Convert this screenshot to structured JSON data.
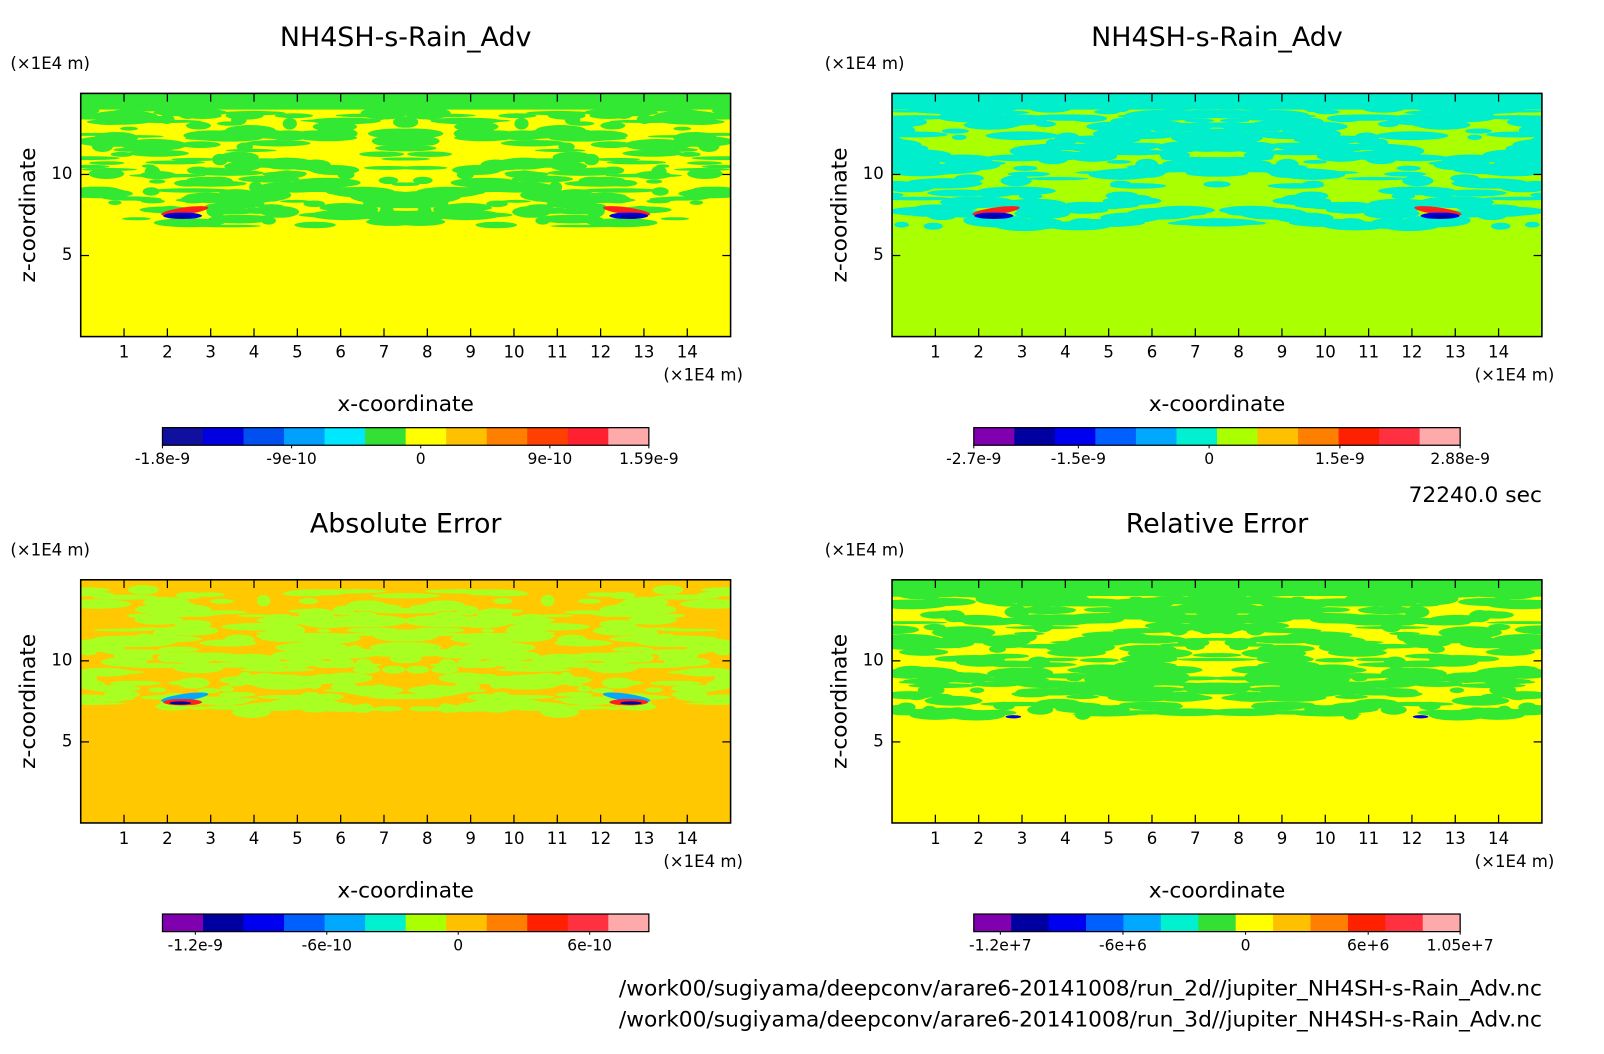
{
  "chart_data": [
    {
      "type": "contour",
      "title": "NH4SH-s-Rain_Adv",
      "xlabel": "x-coordinate",
      "ylabel": "z-coordinate",
      "xunit": "(×1E4 m)",
      "yunit": "(×1E4 m)",
      "xlim": [
        0,
        15
      ],
      "ylim": [
        0,
        15
      ],
      "xticks": [
        1,
        2,
        3,
        4,
        5,
        6,
        7,
        8,
        9,
        10,
        11,
        12,
        13,
        14
      ],
      "yticks": [
        5,
        10
      ],
      "field_colors": [
        "#ffff00",
        "#33e833"
      ],
      "colorbar": {
        "lim": [
          -1.8e-09,
          1.59e-09
        ],
        "ticks": [
          -1.8e-09,
          -9e-10,
          0,
          9e-10,
          1.59e-09
        ],
        "colors": [
          "#1010a0",
          "#0000e0",
          "#0050f0",
          "#00a0ff",
          "#00e8ff",
          "#33e033",
          "#ffff00",
          "#ffc000",
          "#ff8000",
          "#ff4000",
          "#ff2030",
          "#ffaaaa"
        ]
      }
    },
    {
      "type": "contour",
      "title": "NH4SH-s-Rain_Adv",
      "xlabel": "x-coordinate",
      "ylabel": "z-coordinate",
      "xunit": "(×1E4 m)",
      "yunit": "(×1E4 m)",
      "xlim": [
        0,
        15
      ],
      "ylim": [
        0,
        15
      ],
      "xticks": [
        1,
        2,
        3,
        4,
        5,
        6,
        7,
        8,
        9,
        10,
        11,
        12,
        13,
        14
      ],
      "yticks": [
        5,
        10
      ],
      "field_colors": [
        "#aaff00",
        "#00eecc"
      ],
      "colorbar": {
        "lim": [
          -2.7e-09,
          2.88e-09
        ],
        "ticks": [
          -2.7e-09,
          -1.5e-09,
          0,
          1.5e-09,
          2.88e-09
        ],
        "colors": [
          "#8000b0",
          "#0000a0",
          "#0000f0",
          "#0060ff",
          "#00a8ff",
          "#00f0d0",
          "#aaff00",
          "#ffc000",
          "#ff8000",
          "#ff2000",
          "#ff3040",
          "#ffaaaa"
        ]
      }
    },
    {
      "type": "contour",
      "title": "Absolute Error",
      "xlabel": "x-coordinate",
      "ylabel": "z-coordinate",
      "xunit": "(×1E4 m)",
      "yunit": "(×1E4 m)",
      "xlim": [
        0,
        15
      ],
      "ylim": [
        0,
        15
      ],
      "xticks": [
        1,
        2,
        3,
        4,
        5,
        6,
        7,
        8,
        9,
        10,
        11,
        12,
        13,
        14
      ],
      "yticks": [
        5,
        10
      ],
      "field_colors": [
        "#ffc800",
        "#aaff22"
      ],
      "colorbar": {
        "lim": [
          -1.35e-09,
          8.7e-10
        ],
        "ticks": [
          -1.2e-09,
          -6e-10,
          0,
          6e-10
        ],
        "colors": [
          "#8000b0",
          "#0000a0",
          "#0000f0",
          "#0060ff",
          "#00a8ff",
          "#00f0d0",
          "#aaff00",
          "#ffc000",
          "#ff8000",
          "#ff2000",
          "#ff3040",
          "#ffaaaa"
        ]
      }
    },
    {
      "type": "contour",
      "title": "Relative Error",
      "xlabel": "x-coordinate",
      "ylabel": "z-coordinate",
      "xunit": "(×1E4 m)",
      "yunit": "(×1E4 m)",
      "xlim": [
        0,
        15
      ],
      "ylim": [
        0,
        15
      ],
      "xticks": [
        1,
        2,
        3,
        4,
        5,
        6,
        7,
        8,
        9,
        10,
        11,
        12,
        13,
        14
      ],
      "yticks": [
        5,
        10
      ],
      "field_colors": [
        "#ffff00",
        "#33e833"
      ],
      "colorbar": {
        "lim": [
          -13300000,
          10500000
        ],
        "ticks": [
          {
            "value": -12000000,
            "label": "-1.2e+7"
          },
          {
            "value": -6000000,
            "label": "-6e+6"
          },
          0,
          {
            "value": 6000000,
            "label": "6e+6"
          },
          {
            "value": 10500000,
            "label": "1.05e+7"
          }
        ],
        "colors": [
          "#8000b0",
          "#0000a0",
          "#0000f0",
          "#0060ff",
          "#00a8ff",
          "#00f0d0",
          "#33e033",
          "#ffff00",
          "#ffc000",
          "#ff8000",
          "#ff2000",
          "#ff3040",
          "#ffaaaa"
        ]
      }
    }
  ],
  "time_label": "72240.0 sec",
  "files": [
    "/work00/sugiyama/deepconv/arare6-20141008/run_2d//jupiter_NH4SH-s-Rain_Adv.nc",
    "/work00/sugiyama/deepconv/arare6-20141008/run_3d//jupiter_NH4SH-s-Rain_Adv.nc"
  ]
}
